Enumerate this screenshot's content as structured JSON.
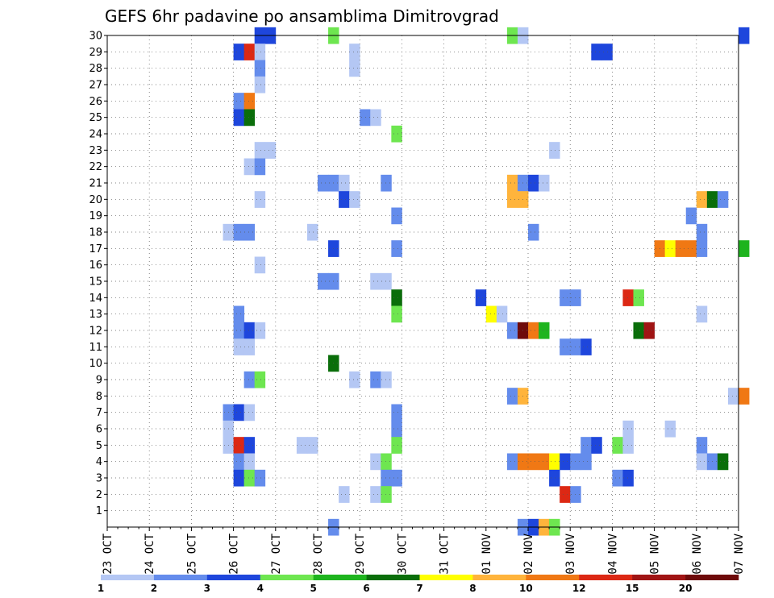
{
  "chart_data": {
    "type": "heatmap",
    "title": "GEFS 6hr padavine po ansamblima Dimitrovgrad",
    "x_axis": {
      "tick_labels": [
        "23 OCT",
        "24 OCT",
        "25 OCT",
        "26 OCT",
        "27 OCT",
        "28 OCT",
        "29 OCT",
        "30 OCT",
        "31 OCT",
        "01 NOV",
        "02 NOV",
        "03 NOV",
        "04 NOV",
        "05 NOV",
        "06 NOV",
        "07 NOV"
      ],
      "step_hours": 6,
      "steps_per_day": 4
    },
    "y_axis": {
      "tick_labels": [
        "1",
        "2",
        "3",
        "4",
        "5",
        "6",
        "7",
        "8",
        "9",
        "10",
        "11",
        "12",
        "13",
        "14",
        "15",
        "16",
        "17",
        "18",
        "19",
        "20",
        "21",
        "22",
        "23",
        "24",
        "25",
        "26",
        "27",
        "28",
        "29",
        "30"
      ],
      "range": [
        0,
        30
      ]
    },
    "grid": true,
    "legend": {
      "placement": "bottom",
      "labels": [
        "1",
        "2",
        "3",
        "4",
        "5",
        "6",
        "7",
        "8",
        "10",
        "12",
        "15",
        "20"
      ],
      "colors": [
        "#b4c7f4",
        "#648cec",
        "#1e46dc",
        "#6ee650",
        "#1eb41e",
        "#0a6e0a",
        "#ffff00",
        "#ffb43c",
        "#f07814",
        "#dc2814",
        "#a01414",
        "#6e0a0a"
      ]
    },
    "class_colors": [
      "#b4c7f4",
      "#648cec",
      "#1e46dc",
      "#6ee650",
      "#1eb41e",
      "#0a6e0a",
      "#ffff00",
      "#ffb43c",
      "#f07814",
      "#dc2814",
      "#a01414",
      "#6e0a0a"
    ],
    "cells": [
      [
        14,
        30,
        3
      ],
      [
        15,
        30,
        3
      ],
      [
        21,
        30,
        4
      ],
      [
        38,
        30,
        4
      ],
      [
        39,
        30,
        1
      ],
      [
        60,
        30,
        3
      ],
      [
        12,
        29,
        3
      ],
      [
        13,
        29,
        10
      ],
      [
        14,
        29,
        1
      ],
      [
        23,
        29,
        1
      ],
      [
        46,
        29,
        3
      ],
      [
        47,
        29,
        3
      ],
      [
        14,
        28,
        2
      ],
      [
        23,
        28,
        1
      ],
      [
        14,
        27,
        1
      ],
      [
        12,
        26,
        2
      ],
      [
        13,
        26,
        9
      ],
      [
        12,
        25,
        3
      ],
      [
        13,
        25,
        6
      ],
      [
        24,
        25,
        2
      ],
      [
        25,
        25,
        1
      ],
      [
        27,
        24,
        4
      ],
      [
        14,
        23,
        1
      ],
      [
        15,
        23,
        1
      ],
      [
        42,
        23,
        1
      ],
      [
        13,
        22,
        1
      ],
      [
        14,
        22,
        2
      ],
      [
        20,
        21,
        2
      ],
      [
        21,
        21,
        2
      ],
      [
        22,
        21,
        1
      ],
      [
        26,
        21,
        2
      ],
      [
        38,
        21,
        8
      ],
      [
        39,
        21,
        2
      ],
      [
        40,
        21,
        3
      ],
      [
        41,
        21,
        1
      ],
      [
        14,
        20,
        1
      ],
      [
        22,
        20,
        3
      ],
      [
        23,
        20,
        1
      ],
      [
        38,
        20,
        8
      ],
      [
        39,
        20,
        8
      ],
      [
        56,
        20,
        8
      ],
      [
        57,
        20,
        6
      ],
      [
        58,
        20,
        2
      ],
      [
        27,
        19,
        2
      ],
      [
        55,
        19,
        2
      ],
      [
        11,
        18,
        1
      ],
      [
        12,
        18,
        2
      ],
      [
        13,
        18,
        2
      ],
      [
        19,
        18,
        1
      ],
      [
        40,
        18,
        2
      ],
      [
        56,
        18,
        2
      ],
      [
        21,
        17,
        3
      ],
      [
        27,
        17,
        2
      ],
      [
        52,
        17,
        9
      ],
      [
        53,
        17,
        7
      ],
      [
        54,
        17,
        9
      ],
      [
        55,
        17,
        9
      ],
      [
        56,
        17,
        2
      ],
      [
        60,
        17,
        5
      ],
      [
        14,
        16,
        1
      ],
      [
        20,
        15,
        2
      ],
      [
        21,
        15,
        2
      ],
      [
        25,
        15,
        1
      ],
      [
        26,
        15,
        1
      ],
      [
        27,
        14,
        6
      ],
      [
        35,
        14,
        3
      ],
      [
        43,
        14,
        2
      ],
      [
        44,
        14,
        2
      ],
      [
        49,
        14,
        10
      ],
      [
        50,
        14,
        4
      ],
      [
        12,
        13,
        2
      ],
      [
        27,
        13,
        4
      ],
      [
        36,
        13,
        7
      ],
      [
        37,
        13,
        1
      ],
      [
        56,
        13,
        1
      ],
      [
        12,
        12,
        2
      ],
      [
        13,
        12,
        3
      ],
      [
        14,
        12,
        1
      ],
      [
        38,
        12,
        2
      ],
      [
        39,
        12,
        12
      ],
      [
        40,
        12,
        9
      ],
      [
        41,
        12,
        5
      ],
      [
        50,
        12,
        6
      ],
      [
        51,
        12,
        11
      ],
      [
        12,
        11,
        1
      ],
      [
        13,
        11,
        1
      ],
      [
        43,
        11,
        2
      ],
      [
        44,
        11,
        2
      ],
      [
        45,
        11,
        3
      ],
      [
        21,
        10,
        6
      ],
      [
        13,
        9,
        2
      ],
      [
        14,
        9,
        4
      ],
      [
        23,
        9,
        1
      ],
      [
        25,
        9,
        2
      ],
      [
        26,
        9,
        1
      ],
      [
        38,
        8,
        2
      ],
      [
        39,
        8,
        8
      ],
      [
        59,
        8,
        1
      ],
      [
        60,
        8,
        9
      ],
      [
        11,
        7,
        2
      ],
      [
        12,
        7,
        3
      ],
      [
        13,
        7,
        1
      ],
      [
        27,
        7,
        2
      ],
      [
        11,
        6,
        1
      ],
      [
        27,
        6,
        2
      ],
      [
        49,
        6,
        1
      ],
      [
        53,
        6,
        1
      ],
      [
        11,
        5,
        1
      ],
      [
        12,
        5,
        10
      ],
      [
        13,
        5,
        3
      ],
      [
        18,
        5,
        1
      ],
      [
        19,
        5,
        1
      ],
      [
        27,
        5,
        4
      ],
      [
        45,
        5,
        2
      ],
      [
        46,
        5,
        3
      ],
      [
        48,
        5,
        4
      ],
      [
        49,
        5,
        1
      ],
      [
        56,
        5,
        2
      ],
      [
        12,
        4,
        2
      ],
      [
        13,
        4,
        1
      ],
      [
        25,
        4,
        1
      ],
      [
        26,
        4,
        4
      ],
      [
        38,
        4,
        2
      ],
      [
        39,
        4,
        9
      ],
      [
        40,
        4,
        9
      ],
      [
        41,
        4,
        9
      ],
      [
        42,
        4,
        7
      ],
      [
        43,
        4,
        3
      ],
      [
        44,
        4,
        2
      ],
      [
        45,
        4,
        2
      ],
      [
        56,
        4,
        1
      ],
      [
        57,
        4,
        2
      ],
      [
        58,
        4,
        6
      ],
      [
        12,
        3,
        3
      ],
      [
        13,
        3,
        4
      ],
      [
        14,
        3,
        2
      ],
      [
        26,
        3,
        2
      ],
      [
        27,
        3,
        2
      ],
      [
        42,
        3,
        3
      ],
      [
        48,
        3,
        2
      ],
      [
        49,
        3,
        3
      ],
      [
        22,
        2,
        1
      ],
      [
        25,
        2,
        1
      ],
      [
        26,
        2,
        4
      ],
      [
        43,
        2,
        10
      ],
      [
        44,
        2,
        2
      ],
      [
        21,
        0,
        2
      ],
      [
        39,
        0,
        2
      ],
      [
        40,
        0,
        3
      ],
      [
        41,
        0,
        8
      ],
      [
        42,
        0,
        4
      ]
    ]
  }
}
